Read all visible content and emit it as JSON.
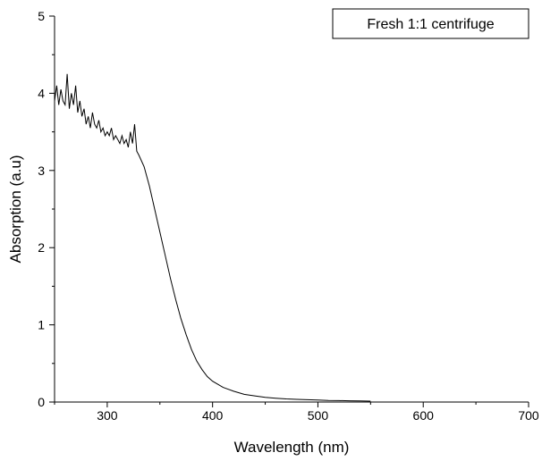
{
  "chart_data": {
    "type": "line",
    "title": "",
    "xlabel": "Wavelength (nm)",
    "ylabel": "Absorption (a.u)",
    "xlim": [
      250,
      700
    ],
    "ylim": [
      0,
      5
    ],
    "x_ticks": [
      300,
      400,
      500,
      600,
      700
    ],
    "y_ticks": [
      0,
      1,
      2,
      3,
      4,
      5
    ],
    "grid": false,
    "legend_position": "top-right",
    "series": [
      {
        "name": "Fresh 1:1 centrifuge",
        "color": "#000000",
        "x": [
          250,
          252,
          254,
          256,
          258,
          260,
          262,
          264,
          266,
          268,
          270,
          272,
          274,
          276,
          278,
          280,
          282,
          284,
          286,
          288,
          290,
          292,
          294,
          296,
          298,
          300,
          302,
          304,
          306,
          308,
          310,
          312,
          314,
          316,
          318,
          320,
          322,
          324,
          326,
          328,
          330,
          335,
          340,
          345,
          350,
          355,
          360,
          365,
          370,
          375,
          380,
          385,
          390,
          395,
          400,
          410,
          420,
          430,
          440,
          450,
          460,
          470,
          480,
          490,
          500,
          510,
          520,
          530,
          540,
          550
        ],
        "y": [
          3.9,
          4.1,
          3.85,
          4.05,
          3.9,
          3.85,
          4.25,
          3.8,
          4.0,
          3.85,
          4.1,
          3.75,
          3.9,
          3.7,
          3.8,
          3.6,
          3.7,
          3.55,
          3.75,
          3.6,
          3.55,
          3.65,
          3.5,
          3.55,
          3.45,
          3.5,
          3.45,
          3.55,
          3.4,
          3.45,
          3.4,
          3.35,
          3.45,
          3.35,
          3.4,
          3.3,
          3.5,
          3.35,
          3.6,
          3.25,
          3.2,
          3.05,
          2.8,
          2.5,
          2.2,
          1.9,
          1.6,
          1.33,
          1.08,
          0.87,
          0.68,
          0.53,
          0.42,
          0.33,
          0.27,
          0.19,
          0.14,
          0.1,
          0.08,
          0.06,
          0.05,
          0.04,
          0.035,
          0.03,
          0.025,
          0.02,
          0.018,
          0.016,
          0.014,
          0.012
        ]
      }
    ]
  }
}
